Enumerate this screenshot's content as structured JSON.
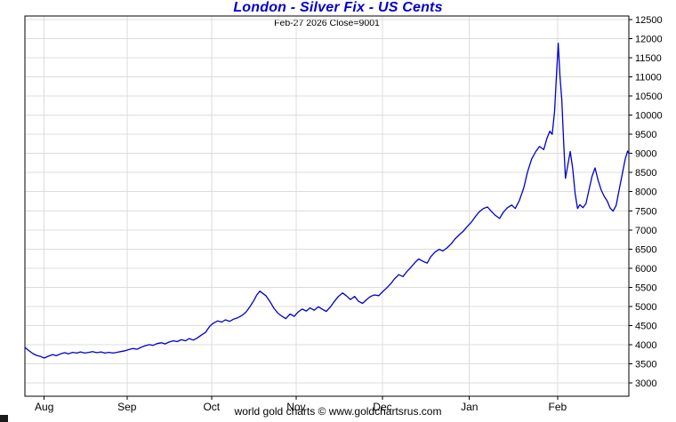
{
  "chart_data": {
    "type": "line",
    "title": "London - Silver Fix - US Cents",
    "subtitle": "Feb-27 2026  Close=9001",
    "xlabel": "",
    "ylabel": "",
    "ylim": [
      3000,
      12500
    ],
    "grid": true,
    "legend_position": "none",
    "line_color": "#0000cc",
    "title_color": "#0000cc",
    "y_ticks": [
      3000,
      3500,
      4000,
      4500,
      5000,
      5500,
      6000,
      6500,
      7000,
      7500,
      8000,
      8500,
      9000,
      9500,
      10000,
      10500,
      11000,
      11500,
      12000,
      12500
    ],
    "x_ticks": [
      "Aug",
      "Sep",
      "Oct",
      "Nov",
      "Dec",
      "Jan",
      "Feb"
    ],
    "x_tick_positions": [
      3.2,
      16.9,
      30.9,
      44.9,
      59.2,
      73.6,
      88.2
    ],
    "series": [
      {
        "name": "London Silver Fix (US cents)",
        "points": [
          [
            0,
            3930
          ],
          [
            0.6,
            3850
          ],
          [
            1.2,
            3780
          ],
          [
            1.9,
            3720
          ],
          [
            2.6,
            3690
          ],
          [
            3.2,
            3650
          ],
          [
            3.9,
            3700
          ],
          [
            4.6,
            3740
          ],
          [
            5.2,
            3710
          ],
          [
            5.9,
            3760
          ],
          [
            6.6,
            3790
          ],
          [
            7.2,
            3760
          ],
          [
            7.9,
            3800
          ],
          [
            8.6,
            3780
          ],
          [
            9.2,
            3810
          ],
          [
            9.9,
            3780
          ],
          [
            10.6,
            3800
          ],
          [
            11.2,
            3820
          ],
          [
            11.9,
            3790
          ],
          [
            12.6,
            3810
          ],
          [
            13.2,
            3780
          ],
          [
            13.9,
            3800
          ],
          [
            14.6,
            3780
          ],
          [
            15.2,
            3800
          ],
          [
            15.9,
            3820
          ],
          [
            16.6,
            3840
          ],
          [
            17.2,
            3870
          ],
          [
            17.9,
            3900
          ],
          [
            18.6,
            3880
          ],
          [
            19.2,
            3930
          ],
          [
            19.9,
            3970
          ],
          [
            20.6,
            4000
          ],
          [
            21.2,
            3980
          ],
          [
            21.9,
            4030
          ],
          [
            22.6,
            4050
          ],
          [
            23.2,
            4020
          ],
          [
            23.9,
            4070
          ],
          [
            24.6,
            4100
          ],
          [
            25.2,
            4080
          ],
          [
            25.9,
            4130
          ],
          [
            26.6,
            4100
          ],
          [
            27.2,
            4160
          ],
          [
            27.9,
            4120
          ],
          [
            28.6,
            4180
          ],
          [
            29.2,
            4250
          ],
          [
            29.9,
            4320
          ],
          [
            30.6,
            4480
          ],
          [
            31.2,
            4560
          ],
          [
            31.9,
            4620
          ],
          [
            32.6,
            4590
          ],
          [
            33.2,
            4650
          ],
          [
            33.9,
            4610
          ],
          [
            34.6,
            4670
          ],
          [
            35.2,
            4700
          ],
          [
            35.9,
            4760
          ],
          [
            36.6,
            4850
          ],
          [
            37.2,
            4980
          ],
          [
            37.9,
            5150
          ],
          [
            38.4,
            5300
          ],
          [
            38.9,
            5400
          ],
          [
            39.4,
            5340
          ],
          [
            39.9,
            5280
          ],
          [
            40.6,
            5120
          ],
          [
            41.2,
            4960
          ],
          [
            41.9,
            4820
          ],
          [
            42.6,
            4740
          ],
          [
            43.2,
            4680
          ],
          [
            43.9,
            4800
          ],
          [
            44.6,
            4740
          ],
          [
            45.2,
            4850
          ],
          [
            45.9,
            4930
          ],
          [
            46.6,
            4880
          ],
          [
            47.2,
            4960
          ],
          [
            47.9,
            4900
          ],
          [
            48.6,
            4990
          ],
          [
            49.2,
            4930
          ],
          [
            49.9,
            4870
          ],
          [
            50.6,
            4990
          ],
          [
            51.2,
            5120
          ],
          [
            51.9,
            5260
          ],
          [
            52.6,
            5350
          ],
          [
            53.2,
            5280
          ],
          [
            53.9,
            5180
          ],
          [
            54.6,
            5260
          ],
          [
            55.2,
            5140
          ],
          [
            55.9,
            5080
          ],
          [
            56.6,
            5180
          ],
          [
            57.2,
            5260
          ],
          [
            57.9,
            5300
          ],
          [
            58.6,
            5280
          ],
          [
            59.2,
            5380
          ],
          [
            59.9,
            5480
          ],
          [
            60.6,
            5600
          ],
          [
            61.2,
            5720
          ],
          [
            61.9,
            5830
          ],
          [
            62.6,
            5780
          ],
          [
            63.2,
            5900
          ],
          [
            63.9,
            6020
          ],
          [
            64.6,
            6150
          ],
          [
            65.2,
            6240
          ],
          [
            65.9,
            6180
          ],
          [
            66.6,
            6130
          ],
          [
            67.2,
            6300
          ],
          [
            67.9,
            6420
          ],
          [
            68.6,
            6490
          ],
          [
            69.2,
            6450
          ],
          [
            69.9,
            6530
          ],
          [
            70.6,
            6640
          ],
          [
            71.2,
            6760
          ],
          [
            71.9,
            6870
          ],
          [
            72.6,
            6970
          ],
          [
            73.2,
            7080
          ],
          [
            73.9,
            7200
          ],
          [
            74.6,
            7350
          ],
          [
            75.2,
            7470
          ],
          [
            75.9,
            7560
          ],
          [
            76.6,
            7600
          ],
          [
            77.2,
            7490
          ],
          [
            77.9,
            7380
          ],
          [
            78.6,
            7300
          ],
          [
            79.2,
            7460
          ],
          [
            79.9,
            7580
          ],
          [
            80.6,
            7650
          ],
          [
            81.2,
            7560
          ],
          [
            81.9,
            7780
          ],
          [
            82.6,
            8100
          ],
          [
            83.2,
            8500
          ],
          [
            83.9,
            8850
          ],
          [
            84.6,
            9050
          ],
          [
            85.2,
            9180
          ],
          [
            85.9,
            9100
          ],
          [
            86.4,
            9380
          ],
          [
            86.9,
            9580
          ],
          [
            87.3,
            9500
          ],
          [
            87.7,
            10100
          ],
          [
            88.0,
            11000
          ],
          [
            88.3,
            11880
          ],
          [
            88.6,
            11000
          ],
          [
            88.9,
            10400
          ],
          [
            89.2,
            9300
          ],
          [
            89.5,
            8350
          ],
          [
            89.9,
            8700
          ],
          [
            90.3,
            9050
          ],
          [
            90.7,
            8600
          ],
          [
            91.1,
            7950
          ],
          [
            91.5,
            7560
          ],
          [
            91.9,
            7660
          ],
          [
            92.4,
            7580
          ],
          [
            92.9,
            7690
          ],
          [
            93.4,
            8050
          ],
          [
            93.9,
            8400
          ],
          [
            94.4,
            8620
          ],
          [
            94.9,
            8300
          ],
          [
            95.4,
            8050
          ],
          [
            95.9,
            7880
          ],
          [
            96.4,
            7760
          ],
          [
            96.9,
            7570
          ],
          [
            97.4,
            7490
          ],
          [
            97.9,
            7640
          ],
          [
            98.4,
            8050
          ],
          [
            98.9,
            8450
          ],
          [
            99.4,
            8850
          ],
          [
            99.8,
            9060
          ],
          [
            100,
            9001
          ]
        ]
      }
    ]
  },
  "footer": {
    "text": "world gold charts © www.goldchartsrus.com"
  }
}
